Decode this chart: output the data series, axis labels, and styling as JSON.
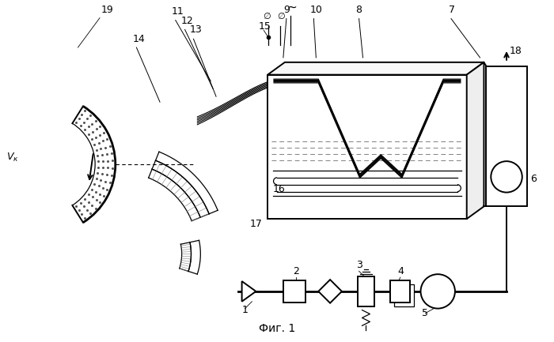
{
  "title": "Фиг. 1",
  "background": "#ffffff",
  "figsize": [
    7.0,
    4.33
  ],
  "dpi": 100
}
